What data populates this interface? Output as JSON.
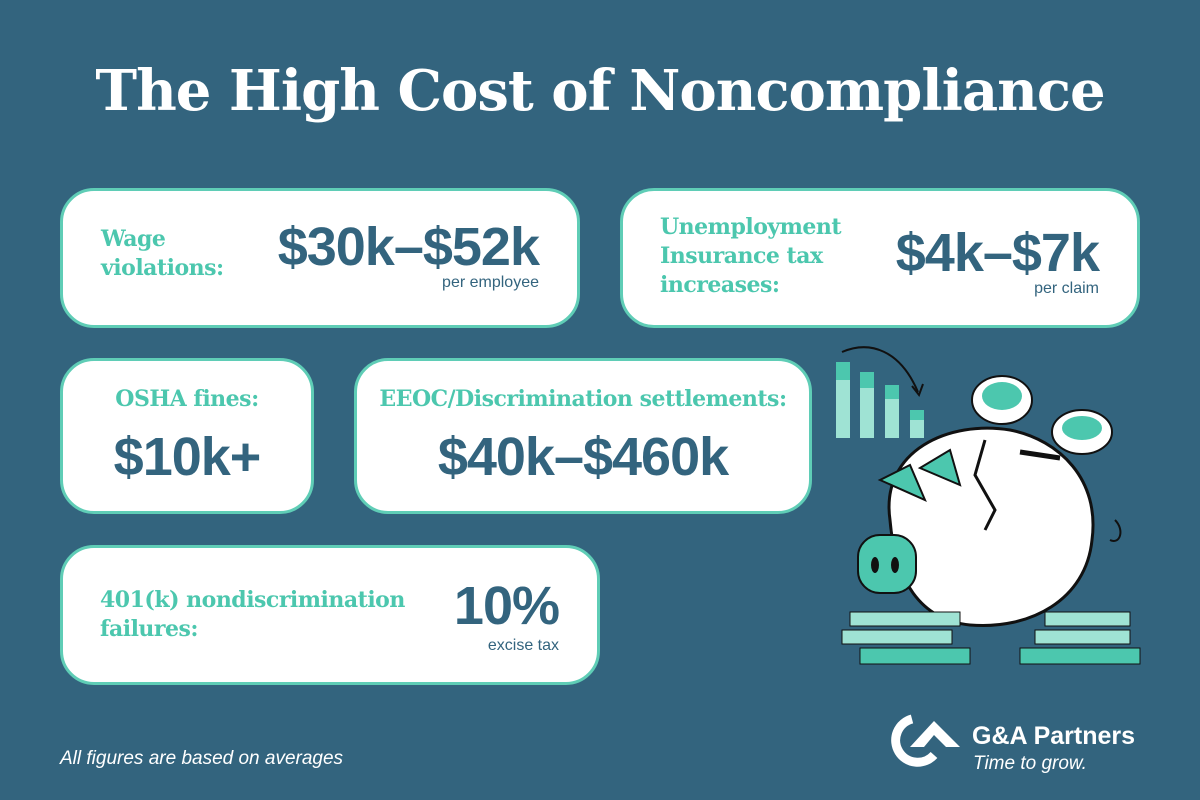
{
  "title": "The High Cost of Noncompliance",
  "cards": [
    {
      "label_lines": [
        "Wage",
        "violations:"
      ],
      "value": "$30k–$52k",
      "unit": "per employee"
    },
    {
      "label_lines": [
        "Unemployment",
        "Insurance tax",
        "increases:"
      ],
      "value": "$4k–$7k",
      "unit": "per claim"
    },
    {
      "label": "OSHA fines:",
      "value": "$10k+"
    },
    {
      "label": "EEOC/Discrimination settlements:",
      "value": "$40k–$460k"
    },
    {
      "label_lines": [
        "401(k) nondiscrimination",
        "failures:"
      ],
      "value": "10%",
      "unit": "excise tax"
    }
  ],
  "footnote": "All figures are based on averages",
  "logo": {
    "name": "G&A Partners",
    "tagline": "Time to grow."
  },
  "colors": {
    "background": "#33647e",
    "accent": "#4cc7ae",
    "value_text": "#33647e",
    "card": "#ffffff"
  },
  "illustration": "broken-piggy-bank-with-coins-and-declining-bar-chart"
}
